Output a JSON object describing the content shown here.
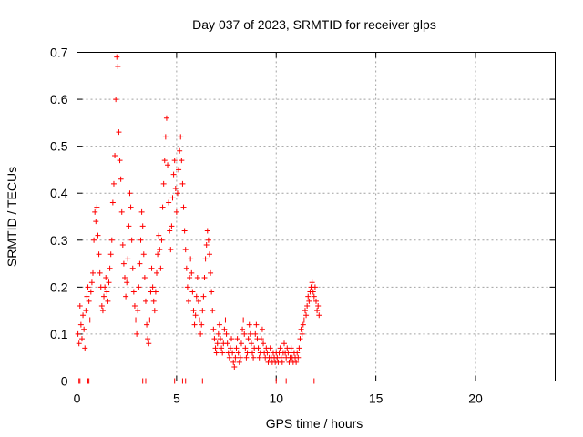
{
  "chart_data": {
    "type": "scatter",
    "title": "Day 037 of 2023, SRMTID for receiver glps",
    "xlabel": "GPS time / hours",
    "ylabel": "SRMTID / TECUs",
    "xlim": [
      0,
      24
    ],
    "ylim": [
      0,
      0.7
    ],
    "xticks": [
      0,
      5,
      10,
      15,
      20
    ],
    "yticks": [
      0,
      0.1,
      0.2,
      0.3,
      0.4,
      0.5,
      0.6,
      0.7
    ],
    "xtick_labels": [
      "0",
      "5",
      "10",
      "15",
      "20"
    ],
    "ytick_labels": [
      "0",
      "0.1",
      "0.2",
      "0.3",
      "0.4",
      "0.5",
      "0.6",
      "0.7"
    ],
    "grid": true,
    "marker": "+",
    "marker_color": "#ff0000",
    "series": [
      {
        "name": "SRMTID",
        "points": [
          [
            0.0,
            0.13
          ],
          [
            0.05,
            0.1
          ],
          [
            0.1,
            0.08
          ],
          [
            0.15,
            0.16
          ],
          [
            0.2,
            0.12
          ],
          [
            0.25,
            0.09
          ],
          [
            0.3,
            0.14
          ],
          [
            0.35,
            0.11
          ],
          [
            0.4,
            0.07
          ],
          [
            0.45,
            0.15
          ],
          [
            0.5,
            0.18
          ],
          [
            0.55,
            0.2
          ],
          [
            0.6,
            0.17
          ],
          [
            0.65,
            0.13
          ],
          [
            0.7,
            0.19
          ],
          [
            0.75,
            0.21
          ],
          [
            0.8,
            0.23
          ],
          [
            0.85,
            0.3
          ],
          [
            0.9,
            0.36
          ],
          [
            0.95,
            0.34
          ],
          [
            1.0,
            0.37
          ],
          [
            1.05,
            0.31
          ],
          [
            1.1,
            0.27
          ],
          [
            1.15,
            0.23
          ],
          [
            1.2,
            0.2
          ],
          [
            1.25,
            0.16
          ],
          [
            1.3,
            0.15
          ],
          [
            1.35,
            0.18
          ],
          [
            1.4,
            0.2
          ],
          [
            1.45,
            0.22
          ],
          [
            1.5,
            0.19
          ],
          [
            1.55,
            0.17
          ],
          [
            1.6,
            0.21
          ],
          [
            1.65,
            0.24
          ],
          [
            1.7,
            0.27
          ],
          [
            1.75,
            0.3
          ],
          [
            1.8,
            0.38
          ],
          [
            1.85,
            0.42
          ],
          [
            1.9,
            0.48
          ],
          [
            1.95,
            0.6
          ],
          [
            2.0,
            0.69
          ],
          [
            2.05,
            0.67
          ],
          [
            2.1,
            0.53
          ],
          [
            2.15,
            0.47
          ],
          [
            2.2,
            0.43
          ],
          [
            2.25,
            0.36
          ],
          [
            2.3,
            0.29
          ],
          [
            2.35,
            0.25
          ],
          [
            2.4,
            0.22
          ],
          [
            2.45,
            0.18
          ],
          [
            2.5,
            0.21
          ],
          [
            2.55,
            0.26
          ],
          [
            2.6,
            0.33
          ],
          [
            2.65,
            0.4
          ],
          [
            2.7,
            0.37
          ],
          [
            2.75,
            0.3
          ],
          [
            2.8,
            0.24
          ],
          [
            2.85,
            0.19
          ],
          [
            2.9,
            0.16
          ],
          [
            2.95,
            0.13
          ],
          [
            3.0,
            0.1
          ],
          [
            3.05,
            0.15
          ],
          [
            3.1,
            0.2
          ],
          [
            3.15,
            0.25
          ],
          [
            3.2,
            0.3
          ],
          [
            3.25,
            0.36
          ],
          [
            3.3,
            0.33
          ],
          [
            3.35,
            0.27
          ],
          [
            3.4,
            0.22
          ],
          [
            3.45,
            0.17
          ],
          [
            3.5,
            0.12
          ],
          [
            3.55,
            0.09
          ],
          [
            3.6,
            0.08
          ],
          [
            3.65,
            0.13
          ],
          [
            3.7,
            0.19
          ],
          [
            3.75,
            0.24
          ],
          [
            3.8,
            0.2
          ],
          [
            3.85,
            0.17
          ],
          [
            3.9,
            0.15
          ],
          [
            3.95,
            0.19
          ],
          [
            4.0,
            0.23
          ],
          [
            4.05,
            0.27
          ],
          [
            4.1,
            0.31
          ],
          [
            4.15,
            0.28
          ],
          [
            4.2,
            0.24
          ],
          [
            4.25,
            0.3
          ],
          [
            4.3,
            0.37
          ],
          [
            4.35,
            0.42
          ],
          [
            4.4,
            0.47
          ],
          [
            4.45,
            0.52
          ],
          [
            4.5,
            0.56
          ],
          [
            4.55,
            0.46
          ],
          [
            4.6,
            0.38
          ],
          [
            4.65,
            0.32
          ],
          [
            4.7,
            0.28
          ],
          [
            4.75,
            0.33
          ],
          [
            4.8,
            0.39
          ],
          [
            4.85,
            0.44
          ],
          [
            4.9,
            0.47
          ],
          [
            4.95,
            0.41
          ],
          [
            5.0,
            0.36
          ],
          [
            5.05,
            0.4
          ],
          [
            5.1,
            0.45
          ],
          [
            5.15,
            0.49
          ],
          [
            5.2,
            0.52
          ],
          [
            5.25,
            0.47
          ],
          [
            5.3,
            0.42
          ],
          [
            5.35,
            0.37
          ],
          [
            5.4,
            0.32
          ],
          [
            5.45,
            0.28
          ],
          [
            5.5,
            0.24
          ],
          [
            5.55,
            0.2
          ],
          [
            5.6,
            0.17
          ],
          [
            5.65,
            0.22
          ],
          [
            5.7,
            0.26
          ],
          [
            5.75,
            0.23
          ],
          [
            5.8,
            0.19
          ],
          [
            5.85,
            0.15
          ],
          [
            5.9,
            0.12
          ],
          [
            5.95,
            0.14
          ],
          [
            6.0,
            0.18
          ],
          [
            6.05,
            0.22
          ],
          [
            6.1,
            0.17
          ],
          [
            6.15,
            0.13
          ],
          [
            6.2,
            0.1
          ],
          [
            6.25,
            0.12
          ],
          [
            6.3,
            0.15
          ],
          [
            6.35,
            0.18
          ],
          [
            6.4,
            0.22
          ],
          [
            6.45,
            0.26
          ],
          [
            6.5,
            0.29
          ],
          [
            6.55,
            0.32
          ],
          [
            6.6,
            0.3
          ],
          [
            6.65,
            0.27
          ],
          [
            6.7,
            0.23
          ],
          [
            6.75,
            0.19
          ],
          [
            6.8,
            0.15
          ],
          [
            6.85,
            0.11
          ],
          [
            6.9,
            0.09
          ],
          [
            6.95,
            0.07
          ],
          [
            7.0,
            0.06
          ],
          [
            7.05,
            0.08
          ],
          [
            7.1,
            0.1
          ],
          [
            7.15,
            0.12
          ],
          [
            7.2,
            0.09
          ],
          [
            7.25,
            0.07
          ],
          [
            7.3,
            0.06
          ],
          [
            7.35,
            0.08
          ],
          [
            7.4,
            0.11
          ],
          [
            7.45,
            0.13
          ],
          [
            7.5,
            0.1
          ],
          [
            7.55,
            0.08
          ],
          [
            7.6,
            0.06
          ],
          [
            7.65,
            0.05
          ],
          [
            7.7,
            0.07
          ],
          [
            7.75,
            0.09
          ],
          [
            7.8,
            0.06
          ],
          [
            7.85,
            0.04
          ],
          [
            7.9,
            0.03
          ],
          [
            7.95,
            0.05
          ],
          [
            8.0,
            0.07
          ],
          [
            8.05,
            0.09
          ],
          [
            8.1,
            0.06
          ],
          [
            8.15,
            0.04
          ],
          [
            8.2,
            0.05
          ],
          [
            8.25,
            0.08
          ],
          [
            8.3,
            0.11
          ],
          [
            8.35,
            0.13
          ],
          [
            8.4,
            0.1
          ],
          [
            8.45,
            0.07
          ],
          [
            8.5,
            0.05
          ],
          [
            8.55,
            0.06
          ],
          [
            8.6,
            0.09
          ],
          [
            8.65,
            0.12
          ],
          [
            8.7,
            0.1
          ],
          [
            8.75,
            0.08
          ],
          [
            8.8,
            0.06
          ],
          [
            8.85,
            0.05
          ],
          [
            8.9,
            0.07
          ],
          [
            8.95,
            0.1
          ],
          [
            9.0,
            0.12
          ],
          [
            9.05,
            0.09
          ],
          [
            9.1,
            0.07
          ],
          [
            9.15,
            0.05
          ],
          [
            9.2,
            0.06
          ],
          [
            9.25,
            0.09
          ],
          [
            9.3,
            0.11
          ],
          [
            9.35,
            0.08
          ],
          [
            9.4,
            0.06
          ],
          [
            9.45,
            0.05
          ],
          [
            9.5,
            0.07
          ],
          [
            9.55,
            0.06
          ],
          [
            9.6,
            0.04
          ],
          [
            9.65,
            0.05
          ],
          [
            9.7,
            0.07
          ],
          [
            9.75,
            0.05
          ],
          [
            9.8,
            0.04
          ],
          [
            9.85,
            0.06
          ],
          [
            9.9,
            0.05
          ],
          [
            9.95,
            0.04
          ],
          [
            10.0,
            0.06
          ],
          [
            10.05,
            0.05
          ],
          [
            10.1,
            0.04
          ],
          [
            10.15,
            0.06
          ],
          [
            10.2,
            0.07
          ],
          [
            10.25,
            0.05
          ],
          [
            10.3,
            0.04
          ],
          [
            10.35,
            0.06
          ],
          [
            10.4,
            0.08
          ],
          [
            10.45,
            0.06
          ],
          [
            10.5,
            0.05
          ],
          [
            10.55,
            0.07
          ],
          [
            10.6,
            0.06
          ],
          [
            10.65,
            0.04
          ],
          [
            10.7,
            0.05
          ],
          [
            10.75,
            0.07
          ],
          [
            10.8,
            0.05
          ],
          [
            10.85,
            0.04
          ],
          [
            10.9,
            0.06
          ],
          [
            10.95,
            0.05
          ],
          [
            11.0,
            0.04
          ],
          [
            11.05,
            0.06
          ],
          [
            11.1,
            0.05
          ],
          [
            11.15,
            0.07
          ],
          [
            11.2,
            0.09
          ],
          [
            11.25,
            0.11
          ],
          [
            11.3,
            0.1
          ],
          [
            11.35,
            0.12
          ],
          [
            11.4,
            0.13
          ],
          [
            11.45,
            0.15
          ],
          [
            11.5,
            0.14
          ],
          [
            11.55,
            0.16
          ],
          [
            11.6,
            0.18
          ],
          [
            11.65,
            0.17
          ],
          [
            11.7,
            0.19
          ],
          [
            11.75,
            0.2
          ],
          [
            11.8,
            0.21
          ],
          [
            11.85,
            0.19
          ],
          [
            11.9,
            0.18
          ],
          [
            11.95,
            0.2
          ],
          [
            12.0,
            0.17
          ],
          [
            12.05,
            0.15
          ],
          [
            12.1,
            0.16
          ],
          [
            12.15,
            0.14
          ],
          [
            0.1,
            0.0
          ],
          [
            0.15,
            0.0
          ],
          [
            0.55,
            0.0
          ],
          [
            0.6,
            0.0
          ],
          [
            3.3,
            0.0
          ],
          [
            3.45,
            0.0
          ],
          [
            4.9,
            0.0
          ],
          [
            5.3,
            0.0
          ],
          [
            5.45,
            0.0
          ],
          [
            6.3,
            0.0
          ],
          [
            10.0,
            0.0
          ],
          [
            10.5,
            0.0
          ],
          [
            11.9,
            0.0
          ]
        ]
      }
    ]
  }
}
